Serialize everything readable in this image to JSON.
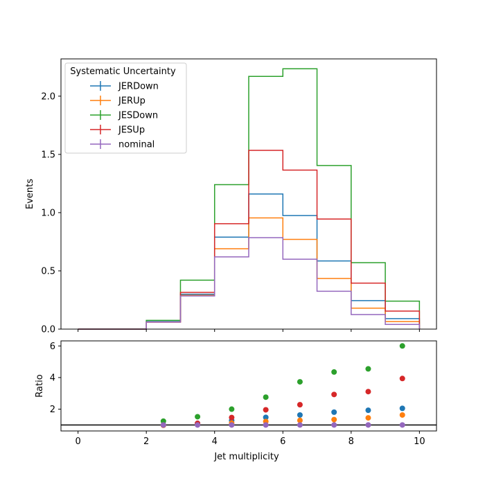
{
  "chart_data": [
    {
      "type": "histogram-step",
      "ylabel": "Events",
      "xlim": [
        -0.5,
        10.5
      ],
      "ylim": [
        0,
        2.32
      ],
      "bin_edges": [
        0,
        1,
        2,
        3,
        4,
        5,
        6,
        7,
        8,
        9,
        10
      ],
      "yticks": [
        "0.0",
        "0.5",
        "1.0",
        "1.5",
        "2.0"
      ],
      "legend": {
        "title": "Systematic Uncertainty",
        "placement": "top-left"
      },
      "series": [
        {
          "name": "JERDown",
          "color": "#1f77b4",
          "values": [
            0,
            0,
            0.065,
            0.3,
            0.79,
            1.16,
            0.975,
            0.585,
            0.245,
            0.09
          ]
        },
        {
          "name": "JERUp",
          "color": "#ff7f0e",
          "values": [
            0,
            0,
            0.06,
            0.29,
            0.69,
            0.955,
            0.77,
            0.435,
            0.18,
            0.065
          ]
        },
        {
          "name": "JESDown",
          "color": "#2ca02c",
          "values": [
            0,
            0,
            0.075,
            0.42,
            1.24,
            2.17,
            2.235,
            1.405,
            0.57,
            0.24
          ]
        },
        {
          "name": "JESUp",
          "color": "#d62728",
          "values": [
            0,
            0,
            0.06,
            0.315,
            0.905,
            1.535,
            1.365,
            0.945,
            0.395,
            0.155
          ]
        },
        {
          "name": "nominal",
          "color": "#9467bd",
          "values": [
            0,
            0,
            0.06,
            0.285,
            0.62,
            0.785,
            0.6,
            0.325,
            0.125,
            0.04
          ]
        }
      ]
    },
    {
      "type": "scatter",
      "xlabel": "Jet multiplicity",
      "ylabel": "Ratio",
      "xlim": [
        -0.5,
        10.5
      ],
      "ylim": [
        0.62,
        6.32
      ],
      "xticks": [
        "0",
        "2",
        "4",
        "6",
        "8",
        "10"
      ],
      "yticks": [
        "2",
        "4",
        "6"
      ],
      "reference_line": 1,
      "x": [
        2.5,
        3.5,
        4.5,
        5.5,
        6.5,
        7.5,
        8.5,
        9.5
      ],
      "series": [
        {
          "name": "JERDown",
          "color": "#1f77b4",
          "values": [
            1.0,
            1.1,
            1.28,
            1.48,
            1.63,
            1.81,
            1.93,
            2.05
          ]
        },
        {
          "name": "JERUp",
          "color": "#ff7f0e",
          "values": [
            0.98,
            1.05,
            1.12,
            1.22,
            1.29,
            1.34,
            1.45,
            1.63
          ]
        },
        {
          "name": "JESDown",
          "color": "#2ca02c",
          "values": [
            1.24,
            1.52,
            2.0,
            2.76,
            3.73,
            4.35,
            4.55,
            6.0
          ]
        },
        {
          "name": "JESUp",
          "color": "#d62728",
          "values": [
            0.99,
            1.1,
            1.47,
            1.96,
            2.28,
            2.93,
            3.11,
            3.94
          ]
        },
        {
          "name": "nominal",
          "color": "#9467bd",
          "values": [
            1.0,
            1.0,
            1.0,
            1.0,
            1.0,
            1.0,
            1.0,
            1.0
          ]
        }
      ]
    }
  ]
}
